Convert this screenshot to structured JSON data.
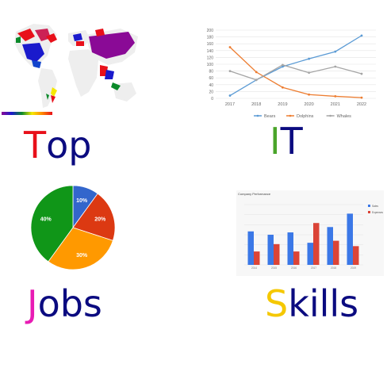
{
  "words": {
    "top": {
      "first": "T",
      "rest": "op",
      "first_color": "#e8101a",
      "rest_color": "#0b0b80"
    },
    "it": {
      "first": "I",
      "rest": "T",
      "first_color": "#4aa52a",
      "rest_color": "#0b0b80"
    },
    "jobs": {
      "first": "J",
      "rest": "obs",
      "first_color": "#e81cb4",
      "rest_color": "#0b0b80"
    },
    "skills": {
      "first": "S",
      "rest": "kills",
      "first_color": "#f5c800",
      "rest_color": "#0b0b80"
    }
  },
  "chart_data": [
    {
      "type": "line",
      "x": [
        "2017",
        "2018",
        "2019",
        "2020",
        "2021",
        "2022"
      ],
      "ylim": [
        0,
        200
      ],
      "yticks": [
        "0",
        "20",
        "40",
        "60",
        "80",
        "100",
        "120",
        "140",
        "160",
        "180",
        "200"
      ],
      "series": [
        {
          "name": "Bears",
          "color": "#5b9bd5",
          "values": [
            8,
            54,
            93,
            116,
            137,
            184
          ]
        },
        {
          "name": "Dolphins",
          "color": "#ed7d31",
          "values": [
            150,
            77,
            32,
            11,
            6,
            2
          ]
        },
        {
          "name": "Whales",
          "color": "#a5a5a5",
          "values": [
            80,
            54,
            98,
            75,
            93,
            72
          ]
        }
      ],
      "grid": true,
      "legend": "bottom"
    },
    {
      "type": "pie",
      "slices": [
        {
          "label": "10%",
          "value": 10,
          "color": "#3366cc"
        },
        {
          "label": "20%",
          "value": 20,
          "color": "#dc3912"
        },
        {
          "label": "30%",
          "value": 30,
          "color": "#ff9900"
        },
        {
          "label": "40%",
          "value": 40,
          "color": "#109618"
        }
      ]
    },
    {
      "type": "bar",
      "title": "Company Performance",
      "categories": [
        "2014",
        "2015",
        "2016",
        "2017",
        "2018",
        "2019"
      ],
      "series": [
        {
          "name": "Sales",
          "color": "#3b78e7",
          "values": [
            1000,
            900,
            970,
            660,
            1130,
            1530
          ]
        },
        {
          "name": "Expenses",
          "color": "#db4437",
          "values": [
            400,
            620,
            400,
            1250,
            720,
            560
          ]
        }
      ],
      "ylim": [
        0,
        1800
      ],
      "grid": true,
      "legend": "right"
    }
  ]
}
